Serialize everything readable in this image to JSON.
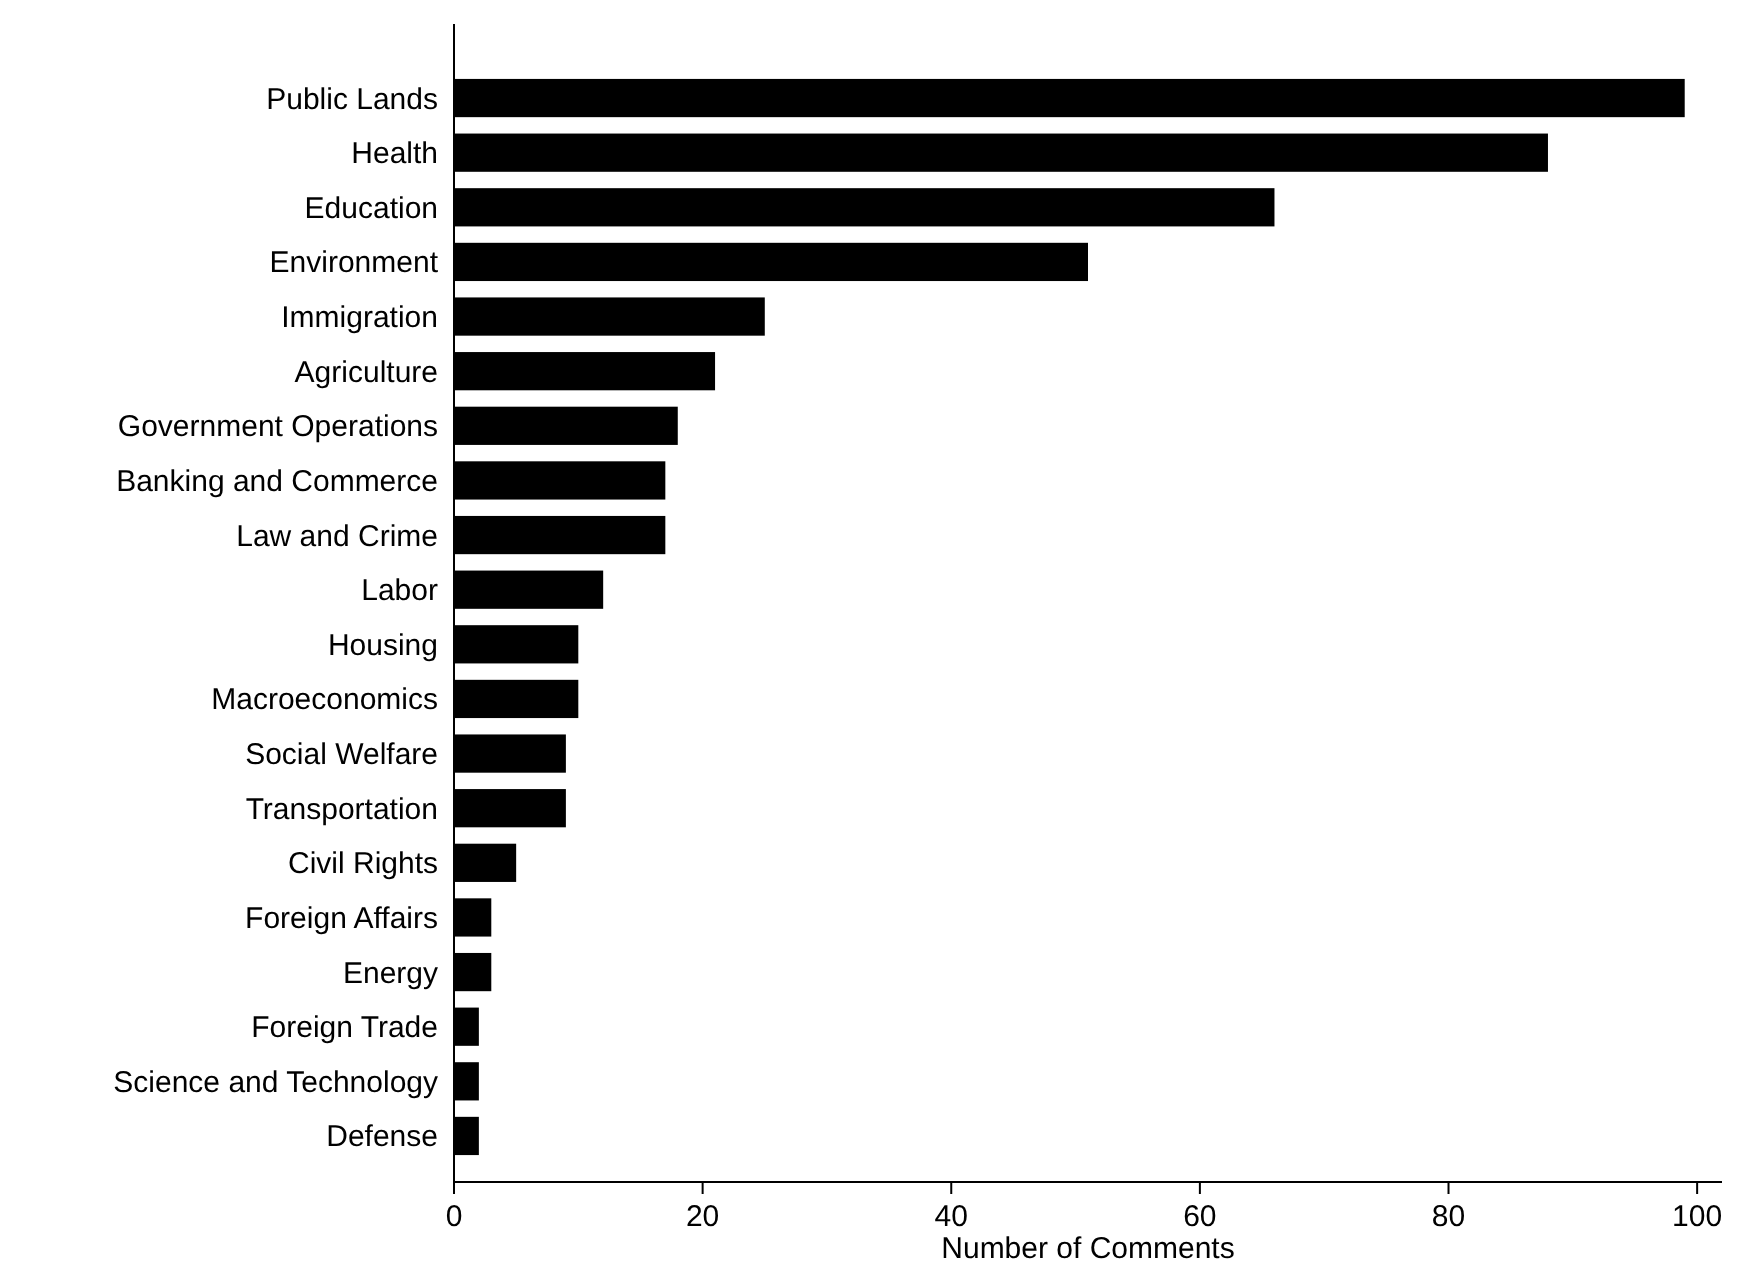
{
  "chart_data": {
    "type": "bar",
    "orientation": "horizontal",
    "xlabel": "Number of Comments",
    "categories": [
      "Public Lands",
      "Health",
      "Education",
      "Environment",
      "Immigration",
      "Agriculture",
      "Government Operations",
      "Banking and Commerce",
      "Law and Crime",
      "Labor",
      "Housing",
      "Macroeconomics",
      "Social Welfare",
      "Transportation",
      "Civil Rights",
      "Foreign Affairs",
      "Energy",
      "Foreign Trade",
      "Science and Technology",
      "Defense"
    ],
    "values": [
      99,
      88,
      66,
      51,
      25,
      21,
      18,
      17,
      17,
      12,
      10,
      10,
      9,
      9,
      5,
      3,
      3,
      2,
      2,
      2
    ],
    "color": "#000000",
    "xlim": [
      0,
      102
    ],
    "xticks": [
      0,
      20,
      40,
      60,
      80,
      100
    ],
    "grid": false
  }
}
